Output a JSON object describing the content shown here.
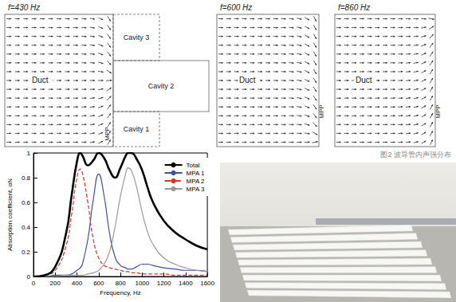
{
  "figure": {
    "panels": [
      {
        "label": "f=430 Hz",
        "duct": "Duct",
        "mpp": "MPP",
        "cavities": [
          "Cavity 3",
          "Cavity 2",
          "Cavity 1"
        ]
      },
      {
        "label": "f=600 Hz",
        "duct": "Duct",
        "mpp": "MPP"
      },
      {
        "label": "f=860 Hz",
        "duct": "Duct",
        "mpp": "MPP"
      }
    ],
    "caption": "图2 波导管内声强分布"
  },
  "chart_data": {
    "type": "line",
    "x_label": "Frequency, Hz",
    "y_label": "Absorption coefficient, αN",
    "x": [
      0,
      100,
      200,
      300,
      350,
      400,
      430,
      450,
      500,
      550,
      600,
      650,
      700,
      750,
      800,
      850,
      870,
      900,
      950,
      1000,
      1050,
      1100,
      1200,
      1300,
      1400,
      1500,
      1600
    ],
    "series": [
      {
        "name": "Total",
        "color": "#000000",
        "line_style": "solid",
        "marker": "none",
        "values": [
          0,
          0.01,
          0.08,
          0.35,
          0.65,
          0.93,
          1.0,
          0.98,
          0.9,
          0.94,
          1.0,
          0.96,
          0.86,
          0.8,
          0.88,
          0.98,
          1.0,
          1.0,
          0.95,
          0.86,
          0.72,
          0.6,
          0.45,
          0.36,
          0.3,
          0.25,
          0.22
        ]
      },
      {
        "name": "MPA 1",
        "color": "#3f51a0",
        "line_style": "solid",
        "marker": "none",
        "values": [
          0,
          0,
          0.01,
          0.01,
          0.02,
          0.05,
          0.07,
          0.1,
          0.3,
          0.62,
          0.83,
          0.65,
          0.35,
          0.16,
          0.09,
          0.07,
          0.06,
          0.06,
          0.08,
          0.1,
          0.1,
          0.09,
          0.07,
          0.06,
          0.05,
          0.05,
          0.04
        ]
      },
      {
        "name": "MPA 2",
        "color": "#e0302a",
        "line_style": "dashed",
        "marker": "none",
        "values": [
          0,
          0.01,
          0.05,
          0.25,
          0.5,
          0.8,
          0.87,
          0.84,
          0.6,
          0.3,
          0.15,
          0.09,
          0.07,
          0.06,
          0.05,
          0.04,
          0.04,
          0.03,
          0.03,
          0.02,
          0.02,
          0.02,
          0.02,
          0.01,
          0.01,
          0.01,
          0.01
        ]
      },
      {
        "name": "MPA 3",
        "color": "#9a9a9a",
        "line_style": "solid",
        "marker": "none",
        "values": [
          0,
          0,
          0,
          0.01,
          0.01,
          0.01,
          0.01,
          0.01,
          0.02,
          0.03,
          0.05,
          0.1,
          0.2,
          0.4,
          0.65,
          0.84,
          0.88,
          0.86,
          0.72,
          0.52,
          0.36,
          0.26,
          0.15,
          0.1,
          0.07,
          0.05,
          0.04
        ]
      }
    ],
    "xlim": [
      0,
      1600
    ],
    "xticks": [
      0,
      200,
      400,
      600,
      800,
      1000,
      1200,
      1400,
      1600
    ],
    "ylim": [
      0,
      1
    ],
    "yticks": [
      0,
      0.2,
      0.4,
      0.6,
      0.8,
      1
    ],
    "grid": false,
    "legend": "upper right"
  }
}
